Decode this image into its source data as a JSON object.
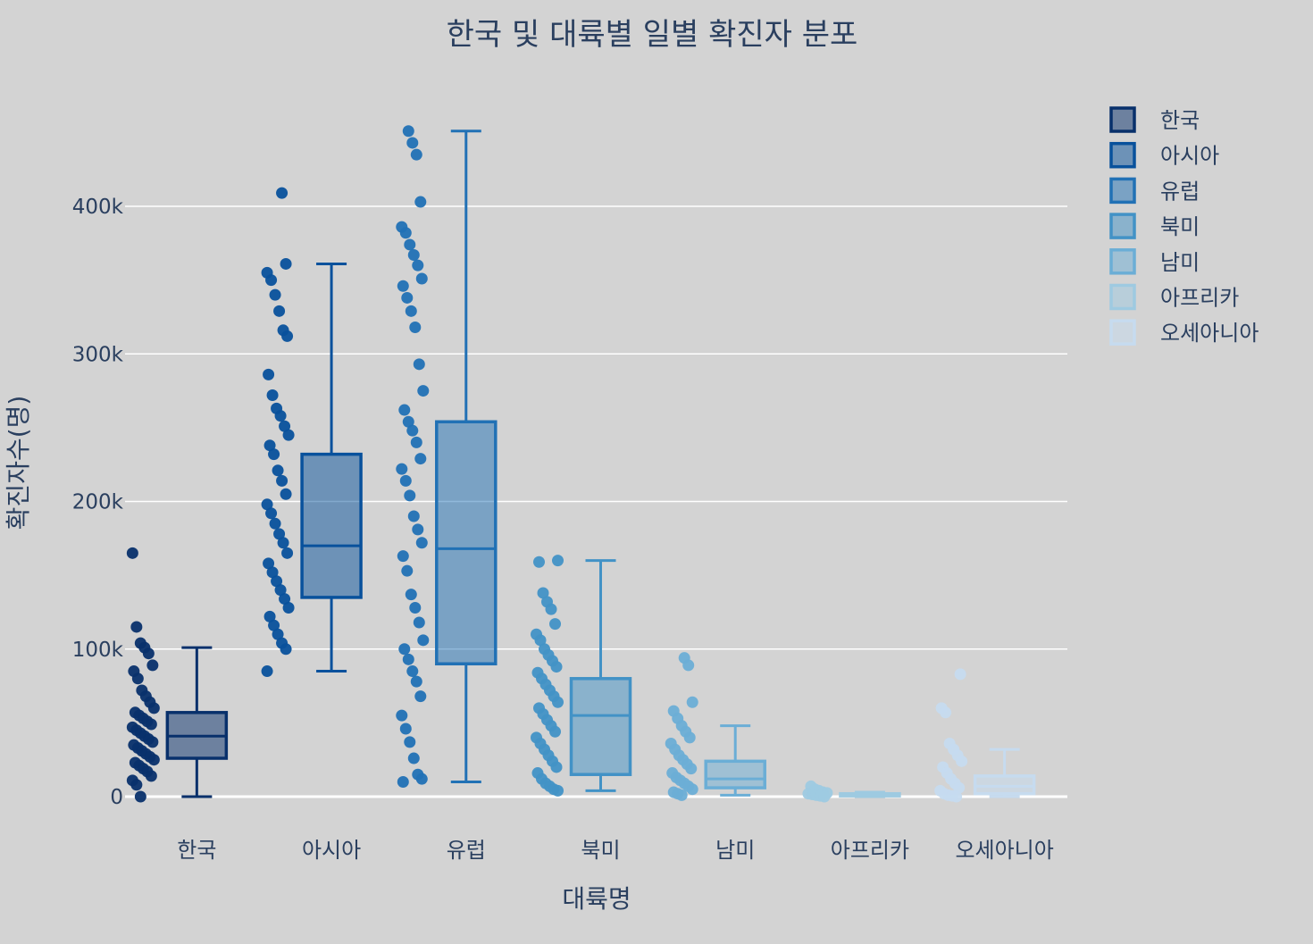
{
  "chart_data": {
    "type": "box",
    "title": "한국 및 대륙별 일별 확진자 분포",
    "xlabel": "대륙명",
    "ylabel": "확진자수(명)",
    "ylim": [
      -20000,
      475000
    ],
    "yticks": [
      0,
      100000,
      200000,
      300000,
      400000
    ],
    "ytick_labels": [
      "0",
      "100k",
      "200k",
      "300k",
      "400k"
    ],
    "grid": true,
    "legend_position": "top-right",
    "categories": [
      "한국",
      "아시아",
      "유럽",
      "북미",
      "남미",
      "아프리카",
      "오세아니아"
    ],
    "series": [
      {
        "name": "한국",
        "color": "#08306b",
        "box": {
          "min": 0,
          "q1": 26000,
          "median": 41000,
          "q3": 57000,
          "max": 101000
        },
        "points": [
          165000,
          115000,
          104000,
          101000,
          97000,
          89000,
          85000,
          80000,
          72000,
          68000,
          64000,
          60000,
          57000,
          55000,
          53000,
          51000,
          49000,
          47000,
          45000,
          43000,
          41000,
          39000,
          37000,
          35000,
          33000,
          31000,
          29000,
          27000,
          25000,
          23000,
          21000,
          19000,
          17000,
          14000,
          11000,
          8000,
          0
        ]
      },
      {
        "name": "아시아",
        "color": "#08519c",
        "box": {
          "min": 85000,
          "q1": 135000,
          "median": 170000,
          "q3": 232000,
          "max": 361000
        },
        "points": [
          409000,
          361000,
          355000,
          350000,
          340000,
          329000,
          316000,
          312000,
          286000,
          272000,
          263000,
          258000,
          251000,
          245000,
          238000,
          232000,
          221000,
          214000,
          205000,
          198000,
          192000,
          185000,
          178000,
          172000,
          165000,
          158000,
          152000,
          146000,
          140000,
          134000,
          128000,
          122000,
          116000,
          110000,
          104000,
          100000,
          85000
        ]
      },
      {
        "name": "유럽",
        "color": "#2171b5",
        "box": {
          "min": 10000,
          "q1": 90000,
          "median": 168000,
          "q3": 254000,
          "max": 451000
        },
        "points": [
          451000,
          443000,
          435000,
          403000,
          386000,
          382000,
          374000,
          367000,
          360000,
          351000,
          346000,
          338000,
          329000,
          318000,
          293000,
          275000,
          262000,
          254000,
          248000,
          240000,
          229000,
          222000,
          214000,
          204000,
          190000,
          181000,
          172000,
          163000,
          153000,
          137000,
          128000,
          118000,
          106000,
          100000,
          93000,
          85000,
          78000,
          68000,
          55000,
          46000,
          37000,
          26000,
          15000,
          12000,
          10000
        ]
      },
      {
        "name": "북미",
        "color": "#4292c6",
        "box": {
          "min": 4000,
          "q1": 15000,
          "median": 55000,
          "q3": 80000,
          "max": 160000
        },
        "points": [
          160000,
          159000,
          138000,
          132000,
          127000,
          117000,
          110000,
          106000,
          100000,
          96000,
          92000,
          88000,
          84000,
          80000,
          76000,
          72000,
          68000,
          64000,
          60000,
          56000,
          52000,
          48000,
          44000,
          40000,
          36000,
          32000,
          28000,
          24000,
          20000,
          16000,
          12000,
          9000,
          7000,
          5000,
          4000
        ]
      },
      {
        "name": "남미",
        "color": "#6baed6",
        "box": {
          "min": 1000,
          "q1": 6000,
          "median": 12000,
          "q3": 24000,
          "max": 48000
        },
        "points": [
          94000,
          89000,
          64000,
          58000,
          53000,
          48000,
          44000,
          40000,
          36000,
          32000,
          28000,
          25000,
          22000,
          19000,
          16000,
          13000,
          11000,
          9000,
          7000,
          5000,
          3000,
          2000,
          1000
        ]
      },
      {
        "name": "아프리카",
        "color": "#9ecae1",
        "box": {
          "min": 0,
          "q1": 500,
          "median": 1000,
          "q3": 2000,
          "max": 3000
        },
        "points": [
          7000,
          5000,
          4000,
          3000,
          2500,
          2000,
          1500,
          1000,
          500,
          0
        ]
      },
      {
        "name": "오세아니아",
        "color": "#c6dbef",
        "box": {
          "min": 0,
          "q1": 2000,
          "median": 7000,
          "q3": 14000,
          "max": 32000
        },
        "points": [
          83000,
          60000,
          57000,
          36000,
          32000,
          28000,
          24000,
          20000,
          16000,
          12000,
          9000,
          6000,
          4000,
          2000,
          1000,
          500,
          0
        ]
      }
    ]
  }
}
